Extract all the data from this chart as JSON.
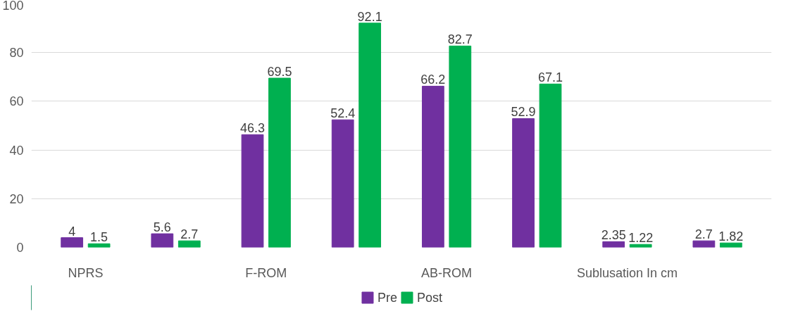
{
  "chart_data": {
    "type": "bar",
    "categories": [
      "NPRS",
      null,
      "F-ROM",
      null,
      "AB-ROM",
      null,
      "Sublusation In cm",
      null
    ],
    "series": [
      {
        "name": "Pre",
        "color": "#7030a0",
        "values": [
          4,
          5.6,
          46.3,
          52.4,
          66.2,
          52.9,
          2.35,
          2.7
        ]
      },
      {
        "name": "Post",
        "color": "#00b050",
        "values": [
          1.5,
          2.7,
          69.5,
          92.1,
          82.7,
          67.1,
          1.22,
          1.82
        ]
      }
    ],
    "ylim": [
      0,
      100
    ],
    "yticks": [
      0,
      20,
      40,
      60,
      80,
      100
    ],
    "grid": "y",
    "legend": "bottom",
    "data_labels": true
  }
}
